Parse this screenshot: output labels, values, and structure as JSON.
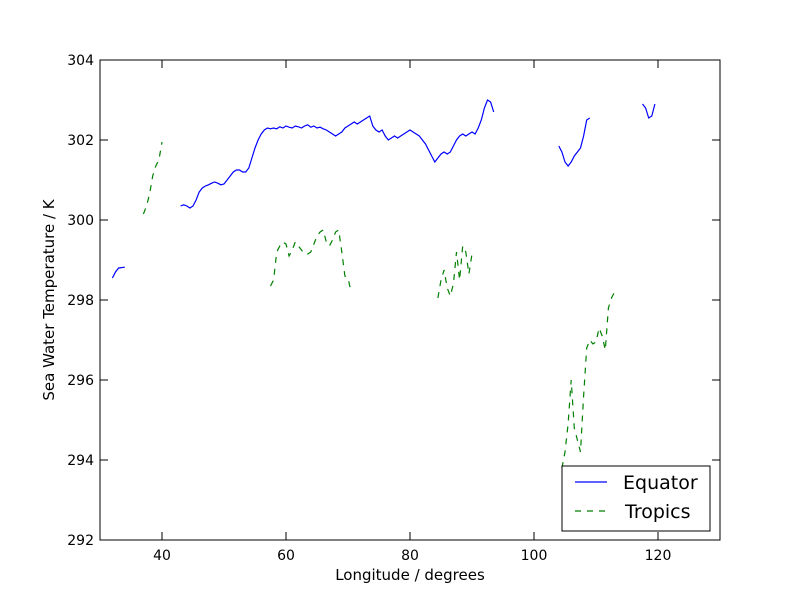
{
  "chart_data": {
    "type": "line",
    "title": "",
    "xlabel": "Longitude / degrees",
    "ylabel": "Sea Water Temperature / K",
    "xlim": [
      30,
      130
    ],
    "ylim": [
      292,
      304
    ],
    "xticks": [
      "40",
      "60",
      "80",
      "100",
      "120"
    ],
    "xtick_values": [
      40,
      60,
      80,
      100,
      120
    ],
    "yticks": [
      "292",
      "294",
      "296",
      "298",
      "300",
      "302",
      "304"
    ],
    "ytick_values": [
      292,
      294,
      296,
      298,
      300,
      302,
      304
    ],
    "grid": false,
    "legend_position": "lower-right",
    "series": [
      {
        "name": "Equator",
        "color": "#0000ff",
        "dash": "solid",
        "segments": [
          [
            [
              32.0,
              298.55
            ],
            [
              32.5,
              298.7
            ],
            [
              33.0,
              298.8
            ],
            [
              34.0,
              298.82
            ]
          ],
          [
            [
              43.0,
              300.35
            ],
            [
              43.5,
              300.38
            ],
            [
              44.0,
              300.35
            ],
            [
              44.5,
              300.3
            ],
            [
              45.0,
              300.35
            ],
            [
              45.5,
              300.5
            ],
            [
              46.0,
              300.7
            ],
            [
              46.5,
              300.8
            ],
            [
              47.0,
              300.85
            ],
            [
              47.5,
              300.88
            ],
            [
              48.0,
              300.92
            ],
            [
              48.5,
              300.95
            ],
            [
              49.0,
              300.92
            ],
            [
              49.5,
              300.88
            ],
            [
              50.0,
              300.9
            ],
            [
              50.5,
              301.0
            ],
            [
              51.0,
              301.1
            ],
            [
              51.5,
              301.2
            ],
            [
              52.0,
              301.25
            ],
            [
              52.5,
              301.25
            ],
            [
              53.0,
              301.2
            ],
            [
              53.5,
              301.2
            ],
            [
              54.0,
              301.3
            ],
            [
              54.5,
              301.55
            ],
            [
              55.0,
              301.8
            ],
            [
              55.5,
              302.0
            ],
            [
              56.0,
              302.15
            ],
            [
              56.5,
              302.25
            ],
            [
              57.0,
              302.3
            ],
            [
              57.5,
              302.28
            ],
            [
              58.0,
              302.3
            ],
            [
              58.5,
              302.28
            ],
            [
              59.0,
              302.33
            ],
            [
              59.5,
              302.3
            ],
            [
              60.0,
              302.35
            ],
            [
              60.5,
              302.32
            ],
            [
              61.0,
              302.3
            ],
            [
              61.5,
              302.35
            ],
            [
              62.0,
              302.33
            ],
            [
              62.5,
              302.3
            ],
            [
              63.0,
              302.35
            ],
            [
              63.5,
              302.38
            ],
            [
              64.0,
              302.32
            ],
            [
              64.5,
              302.35
            ],
            [
              65.0,
              302.3
            ],
            [
              65.5,
              302.32
            ],
            [
              66.0,
              302.28
            ],
            [
              66.5,
              302.25
            ],
            [
              67.0,
              302.2
            ],
            [
              67.5,
              302.15
            ],
            [
              68.0,
              302.1
            ],
            [
              68.5,
              302.15
            ],
            [
              69.0,
              302.2
            ],
            [
              69.5,
              302.3
            ],
            [
              70.0,
              302.35
            ],
            [
              70.5,
              302.4
            ],
            [
              71.0,
              302.45
            ],
            [
              71.5,
              302.4
            ],
            [
              72.0,
              302.45
            ],
            [
              72.5,
              302.5
            ],
            [
              73.0,
              302.55
            ],
            [
              73.5,
              302.6
            ],
            [
              74.0,
              302.35
            ],
            [
              74.5,
              302.25
            ],
            [
              75.0,
              302.2
            ],
            [
              75.5,
              302.25
            ],
            [
              76.0,
              302.1
            ],
            [
              76.5,
              302.0
            ],
            [
              77.0,
              302.05
            ],
            [
              77.5,
              302.1
            ],
            [
              78.0,
              302.05
            ],
            [
              78.5,
              302.1
            ],
            [
              79.0,
              302.15
            ],
            [
              79.5,
              302.2
            ],
            [
              80.0,
              302.25
            ],
            [
              80.5,
              302.2
            ],
            [
              81.0,
              302.15
            ],
            [
              81.5,
              302.1
            ],
            [
              82.0,
              302.0
            ],
            [
              82.5,
              301.9
            ],
            [
              83.0,
              301.75
            ],
            [
              83.5,
              301.6
            ],
            [
              84.0,
              301.45
            ],
            [
              84.5,
              301.55
            ],
            [
              85.0,
              301.65
            ],
            [
              85.5,
              301.7
            ],
            [
              86.0,
              301.65
            ],
            [
              86.5,
              301.7
            ],
            [
              87.0,
              301.85
            ],
            [
              87.5,
              302.0
            ],
            [
              88.0,
              302.1
            ],
            [
              88.5,
              302.15
            ],
            [
              89.0,
              302.1
            ],
            [
              89.5,
              302.15
            ],
            [
              90.0,
              302.2
            ],
            [
              90.5,
              302.15
            ],
            [
              91.0,
              302.3
            ],
            [
              91.5,
              302.5
            ],
            [
              92.0,
              302.8
            ],
            [
              92.5,
              303.0
            ],
            [
              93.0,
              302.95
            ],
            [
              93.5,
              302.7
            ]
          ],
          [
            [
              104.0,
              301.85
            ],
            [
              104.5,
              301.7
            ],
            [
              105.0,
              301.45
            ],
            [
              105.5,
              301.35
            ],
            [
              106.0,
              301.45
            ],
            [
              106.5,
              301.6
            ],
            [
              107.0,
              301.7
            ],
            [
              107.5,
              301.8
            ],
            [
              108.0,
              302.1
            ],
            [
              108.5,
              302.5
            ],
            [
              109.0,
              302.55
            ]
          ],
          [
            [
              117.5,
              302.9
            ],
            [
              118.0,
              302.8
            ],
            [
              118.5,
              302.55
            ],
            [
              119.0,
              302.6
            ],
            [
              119.5,
              302.9
            ]
          ]
        ]
      },
      {
        "name": "Tropics",
        "color": "#008000",
        "dash": "dashed",
        "segments": [
          [
            [
              37.0,
              300.15
            ],
            [
              37.5,
              300.35
            ],
            [
              38.0,
              300.65
            ],
            [
              38.5,
              301.1
            ],
            [
              39.0,
              301.35
            ],
            [
              39.5,
              301.5
            ],
            [
              40.0,
              301.95
            ]
          ],
          [
            [
              57.5,
              298.35
            ],
            [
              58.0,
              298.5
            ],
            [
              58.5,
              299.2
            ],
            [
              59.0,
              299.35
            ],
            [
              59.5,
              299.45
            ],
            [
              60.0,
              299.4
            ],
            [
              60.5,
              299.1
            ],
            [
              61.0,
              299.25
            ],
            [
              61.5,
              299.45
            ],
            [
              62.0,
              299.35
            ],
            [
              62.5,
              299.25
            ],
            [
              63.0,
              299.15
            ],
            [
              63.5,
              299.15
            ],
            [
              64.0,
              299.2
            ],
            [
              64.5,
              299.4
            ],
            [
              65.0,
              299.6
            ],
            [
              65.5,
              299.7
            ],
            [
              66.0,
              299.75
            ],
            [
              66.5,
              299.45
            ],
            [
              67.0,
              299.35
            ],
            [
              67.5,
              299.5
            ],
            [
              68.0,
              299.7
            ],
            [
              68.5,
              299.75
            ],
            [
              69.0,
              299.2
            ],
            [
              69.5,
              298.6
            ],
            [
              70.0,
              298.55
            ],
            [
              70.5,
              298.2
            ]
          ],
          [
            [
              84.5,
              298.05
            ],
            [
              85.0,
              298.5
            ],
            [
              85.5,
              298.75
            ],
            [
              86.0,
              298.3
            ],
            [
              86.5,
              298.1
            ],
            [
              87.0,
              298.4
            ],
            [
              87.5,
              299.2
            ],
            [
              88.0,
              298.5
            ],
            [
              88.5,
              299.35
            ],
            [
              89.0,
              299.2
            ],
            [
              89.5,
              298.65
            ],
            [
              90.0,
              299.15
            ]
          ],
          [
            [
              104.5,
              293.8
            ],
            [
              105.0,
              294.2
            ],
            [
              105.5,
              294.9
            ],
            [
              106.0,
              296.0
            ],
            [
              106.5,
              294.8
            ],
            [
              107.0,
              294.5
            ],
            [
              107.5,
              294.2
            ],
            [
              108.0,
              295.6
            ],
            [
              108.5,
              296.8
            ],
            [
              109.0,
              297.0
            ],
            [
              109.5,
              296.9
            ],
            [
              110.0,
              296.95
            ],
            [
              110.5,
              297.3
            ],
            [
              111.0,
              297.1
            ],
            [
              111.5,
              296.75
            ],
            [
              112.0,
              297.8
            ],
            [
              112.5,
              298.05
            ],
            [
              113.0,
              298.2
            ],
            [
              113.5,
              298.15
            ]
          ]
        ]
      }
    ]
  }
}
